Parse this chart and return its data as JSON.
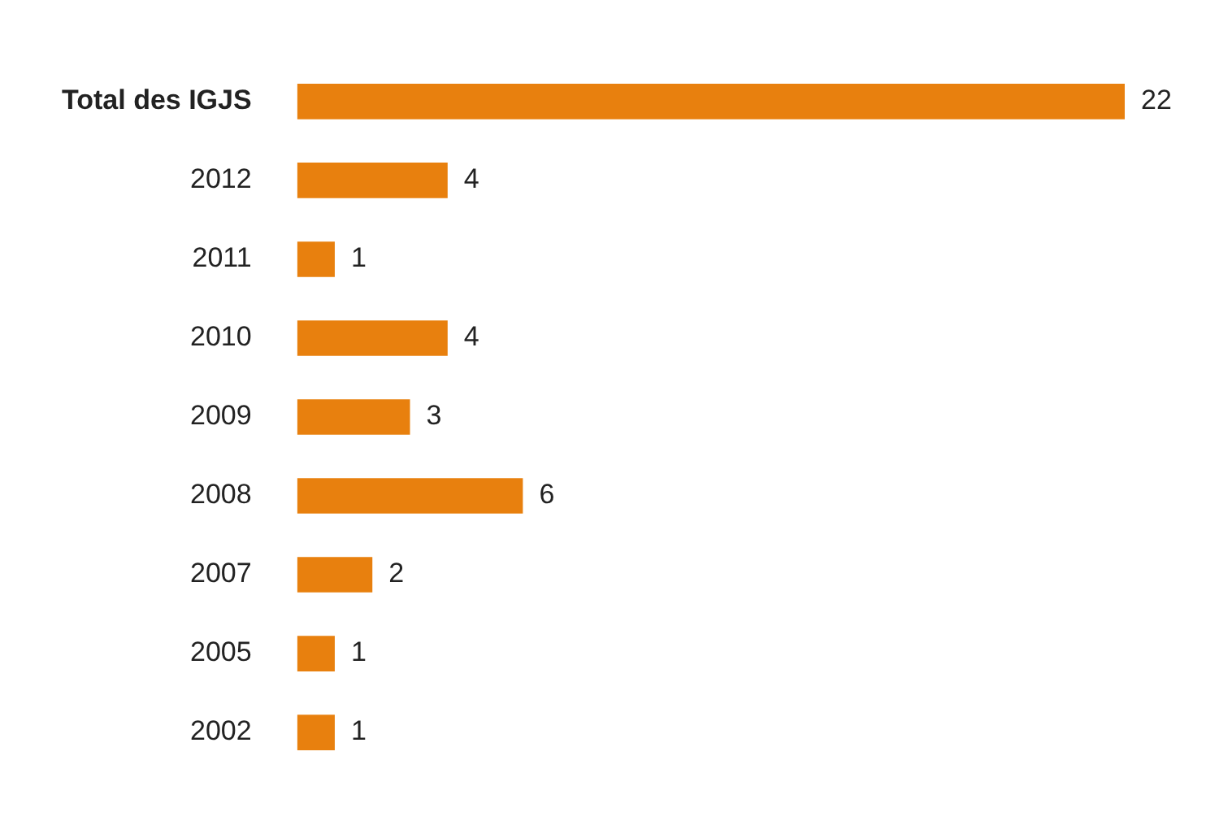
{
  "chart_data": {
    "type": "bar",
    "orientation": "horizontal",
    "categories": [
      "Total des IGJS",
      "2012",
      "2011",
      "2010",
      "2009",
      "2008",
      "2007",
      "2005",
      "2002"
    ],
    "values": [
      22,
      4,
      1,
      4,
      3,
      6,
      2,
      1,
      1
    ],
    "color": "#e8800e",
    "data_labels": true,
    "legend": false,
    "xlim": [
      0,
      22
    ],
    "tick_labels": "y"
  }
}
